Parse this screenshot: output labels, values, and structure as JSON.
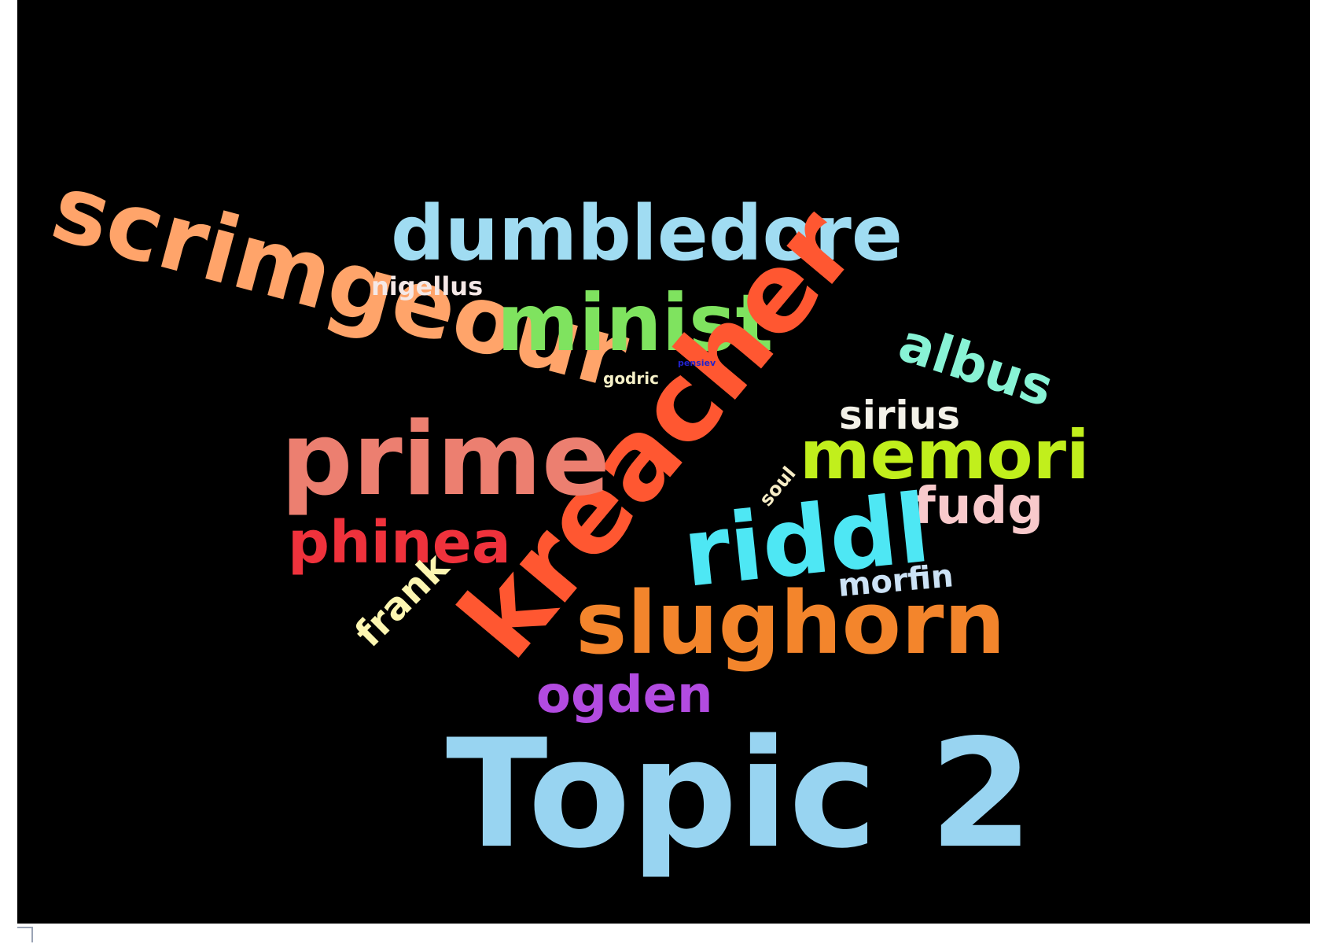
{
  "wordcloud": {
    "title": "Topic 2",
    "background": "#000000",
    "words": [
      {
        "id": "scrimgeour",
        "text": "scrimgeour",
        "color": "#ffa46a"
      },
      {
        "id": "dumbledore",
        "text": "dumbledore",
        "color": "#a0dcf2"
      },
      {
        "id": "nigellus",
        "text": "nigellus",
        "color": "#f5e8e6"
      },
      {
        "id": "minist",
        "text": "minist",
        "color": "#7fe35f"
      },
      {
        "id": "kreacher",
        "text": "kreacher",
        "color": "#ff5731"
      },
      {
        "id": "albus",
        "text": "albus",
        "color": "#88f3d5"
      },
      {
        "id": "godric",
        "text": "godric",
        "color": "#f6f1c8"
      },
      {
        "id": "pensiev",
        "text": "pensiev",
        "color": "#2222cc"
      },
      {
        "id": "sirius",
        "text": "sirius",
        "color": "#f3f1e8"
      },
      {
        "id": "prime",
        "text": "prime",
        "color": "#ec7f70"
      },
      {
        "id": "memori",
        "text": "memori",
        "color": "#c1ef1c"
      },
      {
        "id": "soul",
        "text": "soul",
        "color": "#f7edc6"
      },
      {
        "id": "fudg",
        "text": "fudg",
        "color": "#f8c9cb"
      },
      {
        "id": "phinea",
        "text": "phinea",
        "color": "#ef323c"
      },
      {
        "id": "riddl",
        "text": "riddl",
        "color": "#4ee7f4"
      },
      {
        "id": "frank",
        "text": "frank",
        "color": "#fdf6b1"
      },
      {
        "id": "morfin",
        "text": "morfin",
        "color": "#cce2f5"
      },
      {
        "id": "slughorn",
        "text": "slughorn",
        "color": "#f3852c"
      },
      {
        "id": "ogden",
        "text": "ogden",
        "color": "#b24be0"
      }
    ]
  }
}
